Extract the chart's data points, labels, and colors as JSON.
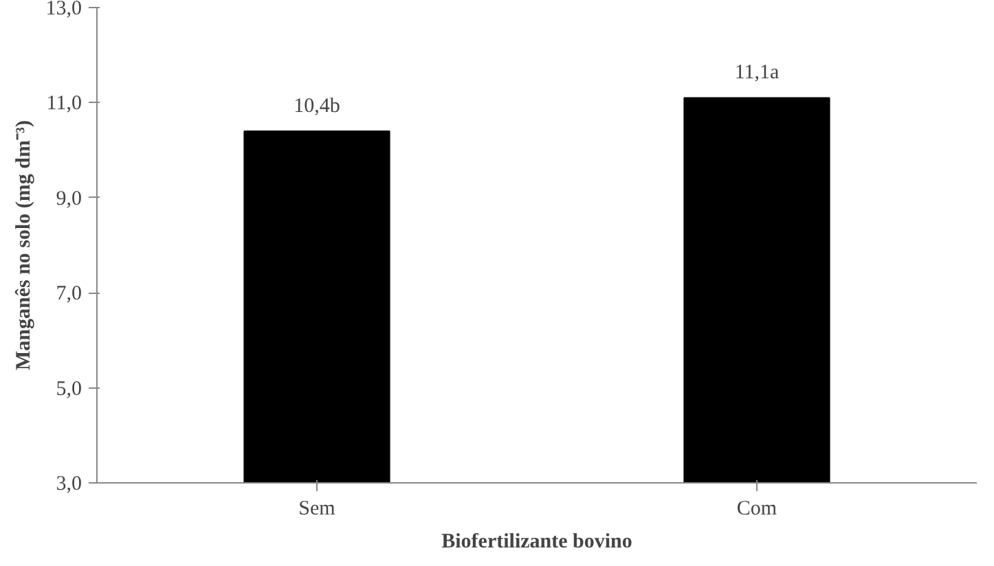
{
  "chart_data": {
    "type": "bar",
    "xlabel": "Biofertilizante bovino",
    "ylabel": "Manganês no solo (mg dm⁻³)",
    "categories": [
      "Sem",
      "Com"
    ],
    "values": [
      10.4,
      11.1
    ],
    "value_labels": [
      "10,4b",
      "11,1a"
    ],
    "color": "#000000",
    "ylim": [
      3,
      13
    ],
    "yticks": [
      {
        "value": 3,
        "label": "3,0"
      },
      {
        "value": 5,
        "label": "5,0"
      },
      {
        "value": 7,
        "label": "7,0"
      },
      {
        "value": 9,
        "label": "9,0"
      },
      {
        "value": 11,
        "label": "11,0"
      },
      {
        "value": 13,
        "label": "13,0"
      }
    ],
    "grid": false
  }
}
